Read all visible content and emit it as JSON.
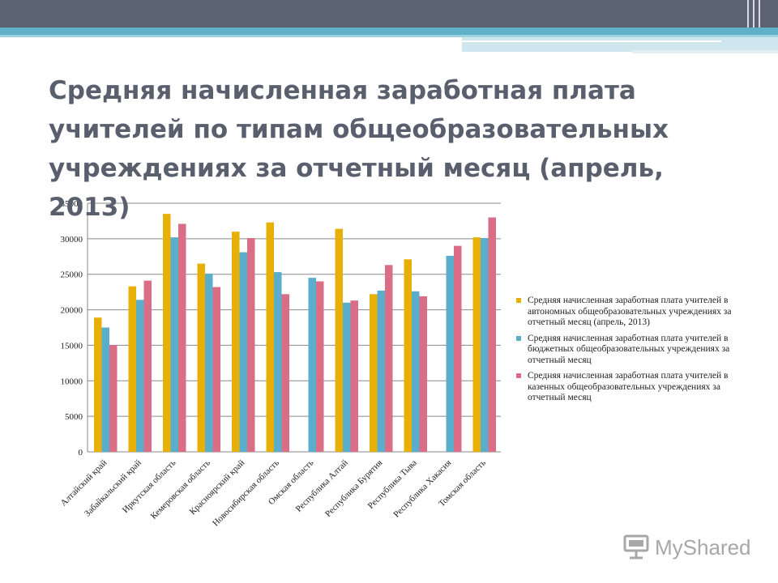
{
  "slide": {
    "title": "Средняя начисленная заработная плата учителей по типам общеобразовательных учреждениях за отчетный месяц (апрель, 2013)",
    "logo_text": "MyShared"
  },
  "colors": {
    "header": "#5b6271",
    "accent": "#5fb0c8",
    "title_text": "#5a5f6e",
    "series": [
      "#e8b006",
      "#5aaecb",
      "#d96e86"
    ]
  },
  "chart_data": {
    "type": "bar",
    "categories": [
      "Алтайский край",
      "Забайкальский край",
      "Иркутская область",
      "Кемеровская область",
      "Красноярский край",
      "Новосибирская область",
      "Омская область",
      "Республика Алтай",
      "Республика Бурятия",
      "Республика Тыва",
      "Республика Хакасия",
      "Томская область"
    ],
    "series": [
      {
        "name": "Средняя начисленная заработная плата учителей в автономных общеобразовательных учреждениях за отчетный месяц (апрель, 2013)",
        "values": [
          18900,
          23300,
          33500,
          26500,
          31000,
          32300,
          null,
          31400,
          22200,
          27100,
          null,
          30200
        ]
      },
      {
        "name": "Средняя начисленная заработная плата учителей в бюджетных общеобразовательных учреждениях за отчетный месяц",
        "values": [
          17500,
          21400,
          30200,
          25100,
          28100,
          25300,
          24500,
          21000,
          22700,
          22600,
          27600,
          30100
        ]
      },
      {
        "name": "Средняя начисленная заработная плата учителей в казенных общеобразовательных учреждениях за отчетный месяц",
        "values": [
          15000,
          24100,
          32100,
          23200,
          30100,
          22200,
          24000,
          21300,
          26300,
          21900,
          29000,
          33000
        ]
      }
    ],
    "yticks": [
      "0",
      "5000",
      "10000",
      "15000",
      "20000",
      "25000",
      "30000",
      "35000"
    ],
    "ylim": [
      0,
      35000
    ],
    "grid": true,
    "legend_position": "right"
  }
}
